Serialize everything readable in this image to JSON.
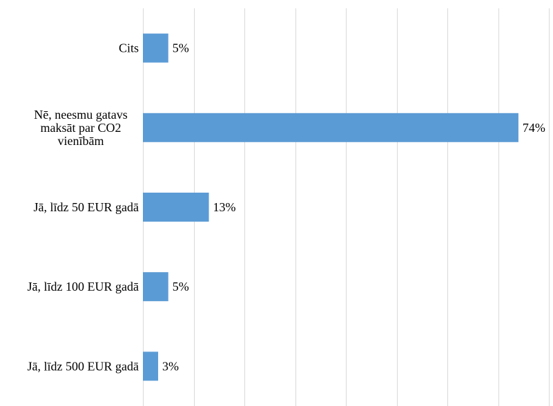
{
  "chart_data": {
    "type": "bar",
    "orientation": "horizontal",
    "categories": [
      [
        "Cits"
      ],
      [
        "Nē, neesmu gatavs",
        "maksāt par CO2",
        "vienībām"
      ],
      [
        "Jā, līdz 50 EUR gadā"
      ],
      [
        "Jā, līdz 100 EUR gadā"
      ],
      [
        "Jā, līdz 500 EUR gadā"
      ]
    ],
    "values": [
      5,
      74,
      13,
      5,
      3
    ],
    "value_labels": [
      "5%",
      "74%",
      "13%",
      "5%",
      "3%"
    ],
    "title": "",
    "xlabel": "",
    "ylabel": "",
    "xlim": [
      0,
      80
    ],
    "grid": "vertical",
    "colors": {
      "bar": "#5b9bd5",
      "grid": "#d9d9d9",
      "text": "#000000"
    }
  }
}
